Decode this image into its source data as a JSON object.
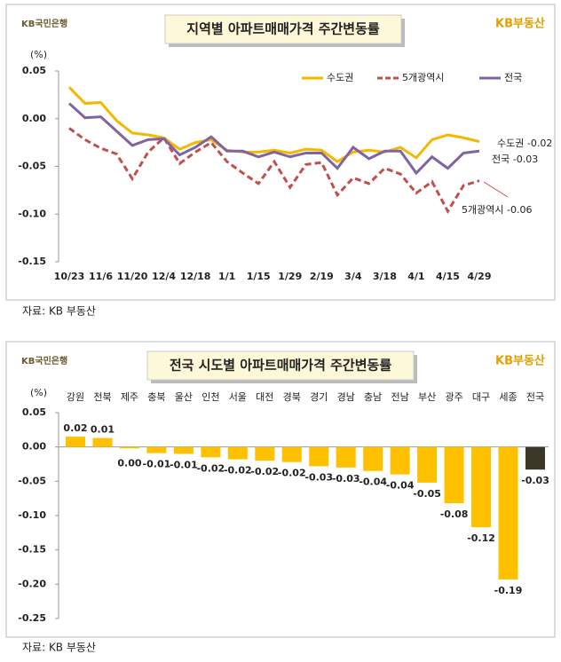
{
  "chart_data": [
    {
      "type": "line",
      "title": "지역별 아파트매매가격 주간변동률",
      "logo_left": "KB국민은행",
      "logo_right": "KB부동산",
      "y_unit": "(%)",
      "source": "자료: KB 부동산",
      "categories": [
        "10/23",
        null,
        "11/6",
        null,
        "11/20",
        null,
        "12/4",
        null,
        "12/18",
        null,
        "1/1",
        null,
        "1/15",
        null,
        "1/29",
        null,
        "2/19",
        null,
        "3/4",
        null,
        "3/18",
        null,
        "4/1",
        null,
        "4/15",
        null,
        "4/29"
      ],
      "series": [
        {
          "name": "수도권",
          "color": "#f5b800",
          "line_style": "solid",
          "values": [
            0.033,
            0.016,
            0.017,
            -0.002,
            -0.015,
            -0.017,
            -0.02,
            -0.032,
            -0.025,
            -0.022,
            -0.033,
            -0.035,
            -0.035,
            -0.033,
            -0.036,
            -0.032,
            -0.033,
            -0.045,
            -0.035,
            -0.033,
            -0.035,
            -0.03,
            -0.041,
            -0.022,
            -0.017,
            -0.02,
            -0.024
          ]
        },
        {
          "name": "5개광역시",
          "color": "#c0504d",
          "line_style": "dashed",
          "values": [
            -0.01,
            -0.022,
            -0.031,
            -0.037,
            -0.063,
            -0.035,
            -0.02,
            -0.047,
            -0.035,
            -0.025,
            -0.045,
            -0.057,
            -0.068,
            -0.045,
            -0.072,
            -0.048,
            -0.046,
            -0.08,
            -0.062,
            -0.068,
            -0.052,
            -0.058,
            -0.078,
            -0.066,
            -0.097,
            -0.07,
            -0.065
          ]
        },
        {
          "name": "전국",
          "color": "#8064a2",
          "line_style": "solid",
          "values": [
            0.016,
            0.001,
            0.002,
            -0.013,
            -0.028,
            -0.022,
            -0.021,
            -0.038,
            -0.03,
            -0.019,
            -0.034,
            -0.034,
            -0.04,
            -0.035,
            -0.04,
            -0.036,
            -0.036,
            -0.052,
            -0.03,
            -0.042,
            -0.034,
            -0.034,
            -0.057,
            -0.04,
            -0.052,
            -0.036,
            -0.034
          ]
        }
      ],
      "annotations": [
        "수도권 -0.02",
        "전국 -0.03",
        "5개광역시 -0.06"
      ],
      "ylim": [
        -0.15,
        0.05
      ],
      "yticks": [
        0.05,
        {
          "value": 0,
          "label": "0.00"
        },
        -0.05,
        {
          "value": -0.1,
          "label": "-0.10"
        },
        -0.15
      ],
      "legend": "top-right"
    },
    {
      "type": "bar",
      "title": "전국 시도별 아파트매매가격 주간변동률",
      "logo_left": "KB국민은행",
      "logo_right": "KB부동산",
      "y_unit": "(%)",
      "source": "자료: KB 부동산",
      "categories": [
        "강원",
        "전북",
        "제주",
        "충북",
        "울산",
        "인천",
        "서울",
        "대전",
        "경북",
        "경기",
        "경남",
        "충남",
        "전남",
        "부산",
        "광주",
        "대구",
        "세종",
        "전국"
      ],
      "values": [
        0.015,
        0.013,
        -0.002,
        -0.009,
        -0.01,
        -0.015,
        -0.018,
        -0.02,
        -0.022,
        -0.028,
        -0.03,
        -0.035,
        -0.04,
        -0.052,
        -0.082,
        -0.117,
        -0.193,
        -0.033
      ],
      "value_labels": [
        "0.02",
        "0.01",
        "0.00",
        "-0.01",
        "-0.01",
        "-0.02",
        "-0.02",
        "-0.02",
        "-0.02",
        "-0.03",
        "-0.03",
        "-0.04",
        "-0.04",
        "-0.05",
        "-0.08",
        "-0.12",
        "-0.19",
        "-0.03"
      ],
      "colors": [
        "#ffc000",
        "#ffc000",
        "#ffc000",
        "#ffc000",
        "#ffc000",
        "#ffc000",
        "#ffc000",
        "#ffc000",
        "#ffc000",
        "#ffc000",
        "#ffc000",
        "#ffc000",
        "#ffc000",
        "#ffc000",
        "#ffc000",
        "#ffc000",
        "#ffc000",
        "#3b3828"
      ],
      "ylim": [
        -0.25,
        0.05
      ],
      "yticks": [
        0.05,
        {
          "value": 0,
          "label": "0.00"
        },
        -0.05,
        {
          "value": -0.1,
          "label": "-0.10"
        },
        -0.15,
        {
          "value": -0.2,
          "label": "-0.20"
        },
        -0.25
      ]
    }
  ]
}
